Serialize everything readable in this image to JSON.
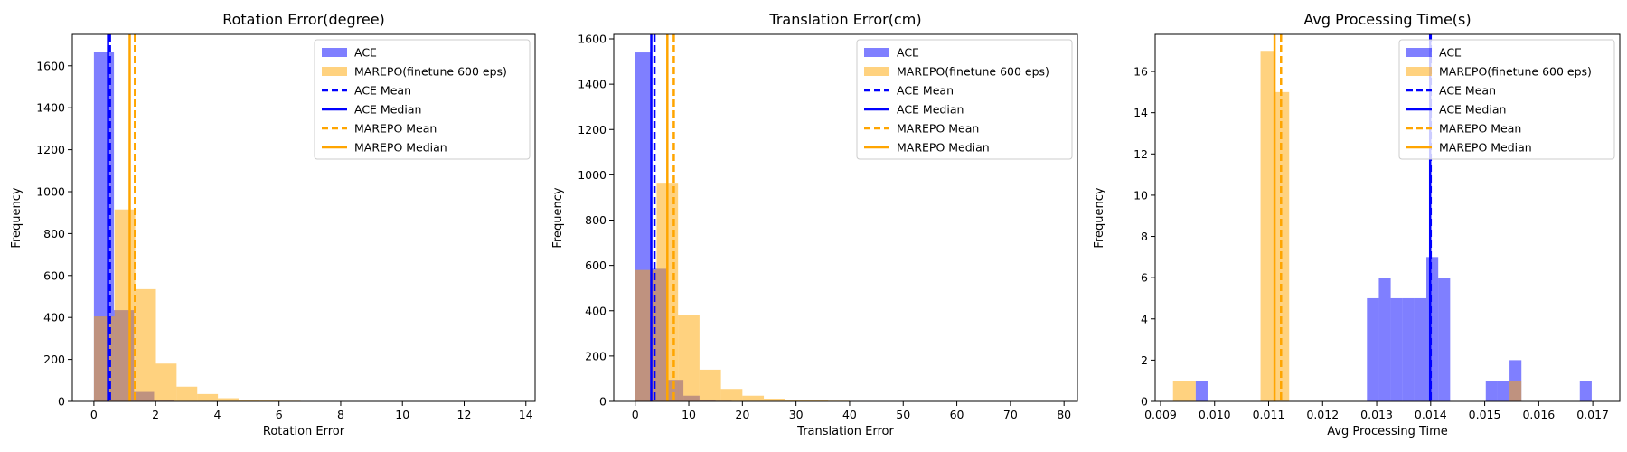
{
  "colors": {
    "ace": "#0000ff",
    "marepo": "#ffa500"
  },
  "chart_data": [
    {
      "type": "histogram",
      "title": "Rotation Error(degree)",
      "xlabel": "Rotation Error",
      "ylabel": "Frequency",
      "xlim": [
        -0.7,
        14.3
      ],
      "ylim": [
        0,
        1750
      ],
      "xticks": [
        0,
        2,
        4,
        6,
        8,
        10,
        12,
        14
      ],
      "yticks": [
        0,
        200,
        400,
        600,
        800,
        1000,
        1200,
        1400,
        1600
      ],
      "grid": false,
      "legend": "top-right",
      "series": [
        {
          "name": "ACE",
          "color": "#0000ff",
          "alpha": 0.5,
          "bins": [
            [
              0.0,
              0.65,
              1665
            ],
            [
              0.65,
              1.3,
              435
            ],
            [
              1.3,
              1.95,
              45
            ],
            [
              1.95,
              2.6,
              4
            ]
          ]
        },
        {
          "name": "MAREPO(finetune 600 eps)",
          "color": "#ffa500",
          "alpha": 0.5,
          "bins": [
            [
              0.0,
              0.67,
              405
            ],
            [
              0.67,
              1.34,
              915
            ],
            [
              1.34,
              2.01,
              535
            ],
            [
              2.01,
              2.68,
              180
            ],
            [
              2.68,
              3.35,
              70
            ],
            [
              3.35,
              4.02,
              35
            ],
            [
              4.02,
              4.69,
              15
            ],
            [
              4.69,
              5.36,
              8
            ],
            [
              5.36,
              6.03,
              4
            ],
            [
              6.03,
              6.7,
              3
            ],
            [
              6.7,
              7.37,
              2
            ],
            [
              7.37,
              8.04,
              2
            ],
            [
              8.04,
              8.71,
              1
            ],
            [
              8.71,
              9.38,
              1
            ],
            [
              9.38,
              10.05,
              1
            ],
            [
              12.7,
              13.4,
              1
            ]
          ]
        }
      ],
      "lines": [
        {
          "name": "ACE Mean",
          "value": 0.52,
          "color": "#0000ff",
          "style": "dashed"
        },
        {
          "name": "ACE Median",
          "value": 0.46,
          "color": "#0000ff",
          "style": "solid"
        },
        {
          "name": "MAREPO Mean",
          "value": 1.33,
          "color": "#ffa500",
          "style": "dashed"
        },
        {
          "name": "MAREPO Median",
          "value": 1.16,
          "color": "#ffa500",
          "style": "solid"
        }
      ]
    },
    {
      "type": "histogram",
      "title": "Translation Error(cm)",
      "xlabel": "Translation Error",
      "ylabel": "Frequency",
      "xlim": [
        -4.0,
        82.5
      ],
      "ylim": [
        0,
        1620
      ],
      "xticks": [
        0,
        10,
        20,
        30,
        40,
        50,
        60,
        70,
        80
      ],
      "yticks": [
        0,
        200,
        400,
        600,
        800,
        1000,
        1200,
        1400,
        1600
      ],
      "grid": false,
      "legend": "top-right",
      "series": [
        {
          "name": "ACE",
          "color": "#0000ff",
          "alpha": 0.5,
          "bins": [
            [
              0.0,
              3.0,
              1540
            ],
            [
              3.0,
              6.0,
              585
            ],
            [
              6.0,
              9.0,
              95
            ],
            [
              9.0,
              12.0,
              25
            ],
            [
              12.0,
              15.0,
              8
            ],
            [
              15.0,
              18.0,
              3
            ]
          ]
        },
        {
          "name": "MAREPO(finetune 600 eps)",
          "color": "#ffa500",
          "alpha": 0.5,
          "bins": [
            [
              0.0,
              4.0,
              580
            ],
            [
              4.0,
              8.0,
              965
            ],
            [
              8.0,
              12.0,
              380
            ],
            [
              12.0,
              16.0,
              140
            ],
            [
              16.0,
              20.0,
              55
            ],
            [
              20.0,
              24.0,
              25
            ],
            [
              24.0,
              28.0,
              12
            ],
            [
              28.0,
              32.0,
              6
            ],
            [
              32.0,
              36.0,
              4
            ],
            [
              36.0,
              40.0,
              3
            ],
            [
              40.0,
              44.0,
              2
            ],
            [
              44.0,
              48.0,
              1
            ],
            [
              48.0,
              52.0,
              1
            ],
            [
              76.0,
              80.0,
              1
            ]
          ]
        }
      ],
      "lines": [
        {
          "name": "ACE Mean",
          "value": 3.6,
          "color": "#0000ff",
          "style": "dashed"
        },
        {
          "name": "ACE Median",
          "value": 3.0,
          "color": "#0000ff",
          "style": "solid"
        },
        {
          "name": "MAREPO Mean",
          "value": 7.2,
          "color": "#ffa500",
          "style": "dashed"
        },
        {
          "name": "MAREPO Median",
          "value": 6.0,
          "color": "#ffa500",
          "style": "solid"
        }
      ]
    },
    {
      "type": "histogram",
      "title": "Avg Processing Time(s)",
      "xlabel": "Avg Processing Time",
      "ylabel": "Frequency",
      "xlim": [
        0.0089,
        0.0175
      ],
      "ylim": [
        0,
        17.8
      ],
      "xticks": [
        0.009,
        0.01,
        0.011,
        0.012,
        0.013,
        0.014,
        0.015,
        0.016,
        0.017
      ],
      "tick_labels": [
        "0.009",
        "0.010",
        "0.011",
        "0.012",
        "0.013",
        "0.014",
        "0.015",
        "0.016",
        "0.017"
      ],
      "yticks": [
        0,
        2,
        4,
        6,
        8,
        10,
        12,
        14,
        16
      ],
      "grid": false,
      "legend": "top-right",
      "series": [
        {
          "name": "ACE",
          "color": "#0000ff",
          "alpha": 0.5,
          "bins": [
            [
              0.00965,
              0.00987,
              1
            ],
            [
              0.01282,
              0.01304,
              5
            ],
            [
              0.01304,
              0.01326,
              6
            ],
            [
              0.01326,
              0.01348,
              5
            ],
            [
              0.01348,
              0.0137,
              5
            ],
            [
              0.0137,
              0.01392,
              5
            ],
            [
              0.01392,
              0.01414,
              7
            ],
            [
              0.01414,
              0.01436,
              6
            ],
            [
              0.01502,
              0.01524,
              1
            ],
            [
              0.01524,
              0.01546,
              1
            ],
            [
              0.01546,
              0.01568,
              2
            ],
            [
              0.01676,
              0.01698,
              1
            ]
          ]
        },
        {
          "name": "MAREPO(finetune 600 eps)",
          "color": "#ffa500",
          "alpha": 0.5,
          "bins": [
            [
              0.00923,
              0.00965,
              1
            ],
            [
              0.01085,
              0.01112,
              17
            ],
            [
              0.01112,
              0.01138,
              15
            ],
            [
              0.01546,
              0.01568,
              1
            ]
          ]
        }
      ],
      "lines": [
        {
          "name": "ACE Mean",
          "value": 0.014,
          "color": "#0000ff",
          "style": "dashed"
        },
        {
          "name": "ACE Median",
          "value": 0.01399,
          "color": "#0000ff",
          "style": "solid"
        },
        {
          "name": "MAREPO Mean",
          "value": 0.01123,
          "color": "#ffa500",
          "style": "dashed"
        },
        {
          "name": "MAREPO Median",
          "value": 0.01111,
          "color": "#ffa500",
          "style": "solid"
        }
      ]
    }
  ]
}
